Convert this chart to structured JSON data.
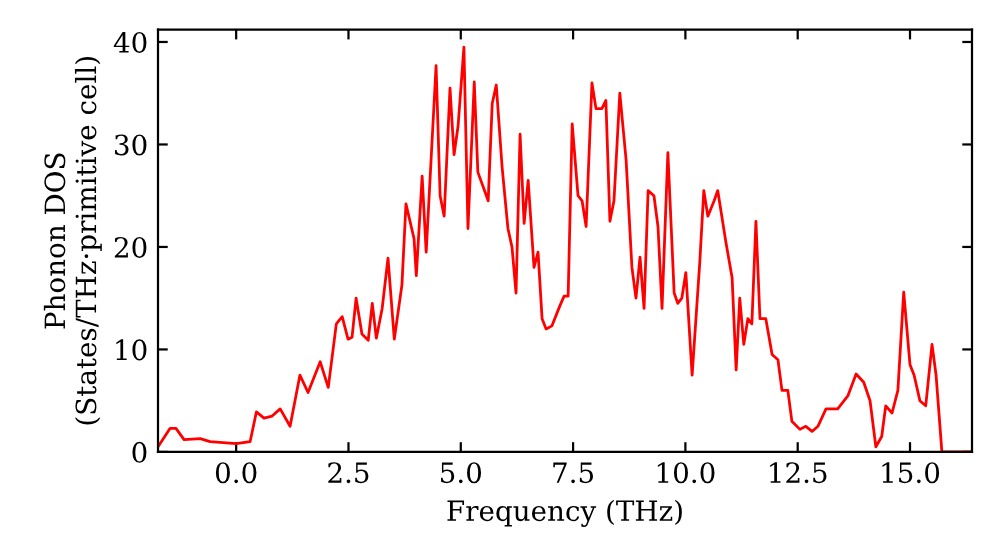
{
  "chart_data": {
    "type": "line",
    "xlabel": "Frequency (THz)",
    "ylabel": "Phonon DOS\n(States/THz·primitive cell)",
    "x": [
      -1.74,
      -1.47,
      -1.34,
      -1.16,
      -0.8,
      -0.58,
      0,
      0.31,
      0.45,
      0.62,
      0.8,
      0.98,
      1.2,
      1.42,
      1.6,
      1.87,
      2.05,
      2.23,
      2.36,
      2.49,
      2.58,
      2.67,
      2.8,
      2.94,
      3.03,
      3.12,
      3.25,
      3.38,
      3.52,
      3.69,
      3.78,
      3.96,
      4.01,
      4.14,
      4.23,
      4.45,
      4.54,
      4.63,
      4.76,
      4.85,
      4.94,
      5.07,
      5.16,
      5.3,
      5.38,
      5.61,
      5.7,
      5.79,
      5.92,
      6.05,
      6.14,
      6.23,
      6.32,
      6.41,
      6.5,
      6.63,
      6.72,
      6.81,
      6.9,
      7.03,
      7.21,
      7.3,
      7.39,
      7.48,
      7.61,
      7.7,
      7.79,
      7.92,
      8.01,
      8.14,
      8.23,
      8.32,
      8.41,
      8.54,
      8.68,
      8.81,
      8.9,
      8.99,
      9.08,
      9.17,
      9.3,
      9.39,
      9.48,
      9.61,
      9.75,
      9.83,
      9.92,
      10.01,
      10.15,
      10.32,
      10.41,
      10.5,
      10.64,
      10.72,
      10.9,
      11.04,
      11.13,
      11.21,
      11.3,
      11.39,
      11.48,
      11.57,
      11.66,
      11.79,
      11.93,
      12.06,
      12.15,
      12.28,
      12.37,
      12.55,
      12.68,
      12.82,
      12.95,
      13.13,
      13.39,
      13.62,
      13.8,
      13.97,
      14.11,
      14.24,
      14.37,
      14.46,
      14.6,
      14.73,
      14.86,
      15.0,
      15.09,
      15.22,
      15.35,
      15.49,
      15.58,
      15.71,
      16.38
    ],
    "series": [
      {
        "color": "#ff0000",
        "values": [
          0.5,
          2.3,
          2.3,
          1.2,
          1.3,
          1.0,
          0.8,
          1.0,
          3.9,
          3.3,
          3.5,
          4.2,
          2.5,
          7.5,
          5.8,
          8.8,
          6.3,
          12.5,
          13.2,
          11.0,
          11.2,
          15.0,
          11.5,
          10.9,
          14.5,
          11.1,
          14.0,
          18.9,
          11.0,
          16.3,
          24.2,
          20.8,
          17.2,
          26.9,
          19.5,
          37.7,
          25.0,
          23.0,
          35.5,
          29.0,
          31.8,
          39.5,
          21.8,
          36.1,
          27.3,
          24.5,
          34.0,
          35.8,
          27.8,
          21.8,
          20.0,
          15.5,
          31.0,
          22.3,
          26.5,
          18.0,
          19.5,
          13.0,
          12.0,
          12.3,
          14.3,
          15.2,
          15.2,
          32.0,
          25.0,
          24.5,
          22.0,
          36.0,
          33.5,
          33.5,
          34.3,
          22.5,
          24.5,
          35.0,
          28.5,
          18.0,
          15.0,
          19.0,
          14.0,
          25.5,
          25.0,
          22.0,
          14.0,
          29.2,
          15.5,
          14.5,
          15.0,
          17.5,
          7.5,
          18.5,
          25.5,
          23.0,
          24.5,
          25.5,
          20.5,
          17.0,
          8.0,
          15.0,
          10.5,
          13.0,
          12.5,
          22.5,
          13.0,
          13.0,
          9.5,
          9.0,
          6.0,
          6.0,
          3.0,
          2.2,
          2.5,
          2.0,
          2.5,
          4.2,
          4.2,
          5.5,
          7.6,
          6.8,
          5.0,
          0.5,
          1.5,
          4.5,
          3.8,
          6.0,
          15.6,
          8.5,
          7.5,
          5.0,
          4.5,
          10.5,
          7.5,
          0.0,
          0.0
        ]
      }
    ],
    "xlim": [
      -1.74,
      16.38
    ],
    "ylim": [
      0,
      41.2
    ],
    "xticks": [
      {
        "value": 0,
        "label": "0.0"
      },
      2.5,
      {
        "value": 5,
        "label": "5.0"
      },
      7.5,
      {
        "value": 10,
        "label": "10.0"
      },
      12.5,
      {
        "value": 15,
        "label": "15.0"
      }
    ],
    "yticks": [
      0,
      10,
      20,
      30,
      40
    ],
    "grid": false,
    "marker": "none",
    "line_style": "solid"
  }
}
